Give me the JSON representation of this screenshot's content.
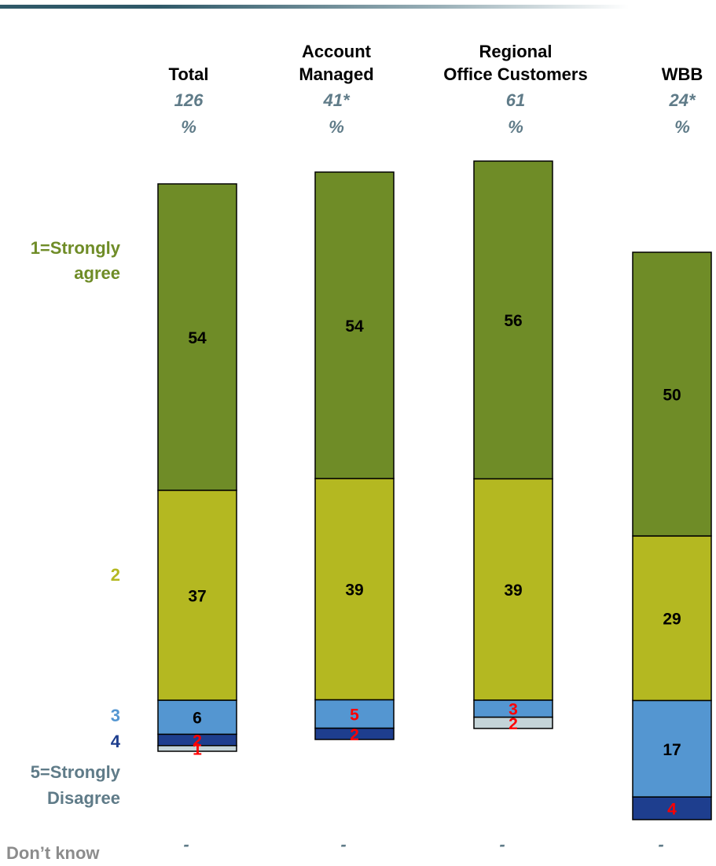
{
  "colors": {
    "strongly_agree": "#6f8c27",
    "agree": "#b4b821",
    "neutral": "#5496d1",
    "disagree": "#1e3e8e",
    "strongly_disagree": "#c4d4d8",
    "label_red": "#ff0000",
    "label_black": "#000000",
    "muted_label": "#5f7b88",
    "dont_know_label": "#8c8c8c"
  },
  "chart_data": {
    "type": "bar",
    "stacked": true,
    "categories": [
      {
        "title_lines": [
          "Total"
        ],
        "base": "126",
        "unit": "%"
      },
      {
        "title_lines": [
          "Account",
          "Managed"
        ],
        "base": "41*",
        "unit": "%"
      },
      {
        "title_lines": [
          "Regional",
          "Office Customers"
        ],
        "base": "61",
        "unit": "%"
      },
      {
        "title_lines": [
          "WBB"
        ],
        "base": "24*",
        "unit": "%"
      }
    ],
    "series": [
      {
        "name": "1=Strongly agree",
        "label_lines": [
          "1=Strongly",
          "agree"
        ],
        "color_key": "strongly_agree",
        "values": [
          54,
          54,
          56,
          50
        ]
      },
      {
        "name": "2",
        "label_lines": [
          "2"
        ],
        "color_key": "agree",
        "values": [
          37,
          39,
          39,
          29
        ]
      },
      {
        "name": "3",
        "label_lines": [
          "3"
        ],
        "color_key": "neutral",
        "values": [
          6,
          5,
          3,
          17
        ]
      },
      {
        "name": "4",
        "label_lines": [
          "4"
        ],
        "color_key": "disagree",
        "values": [
          2,
          2,
          null,
          4
        ]
      },
      {
        "name": "5=Strongly Disagree",
        "label_lines": [
          "5=Strongly",
          "Disagree"
        ],
        "color_key": "strongly_disagree",
        "values": [
          1,
          null,
          2,
          null
        ]
      }
    ],
    "dont_know": {
      "label": "Don’t know",
      "values": [
        "-",
        "-",
        "-",
        "-"
      ]
    },
    "value_unit": "%",
    "xlabel": "",
    "ylabel": ""
  }
}
